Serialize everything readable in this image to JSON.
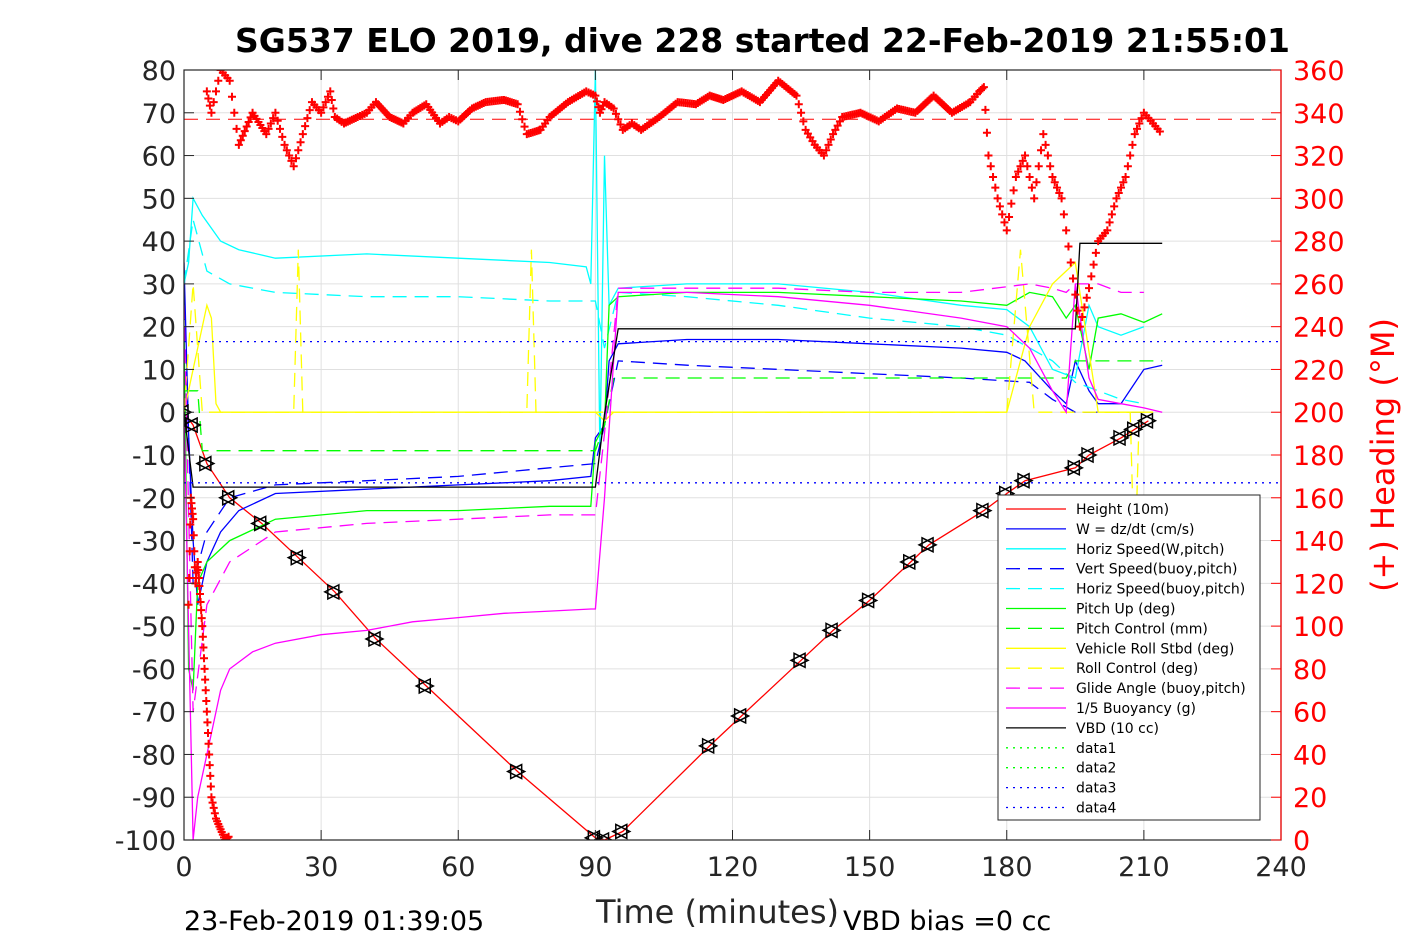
{
  "chart_data": {
    "type": "line",
    "title": "SG537 ELO 2019, dive 228 started 22-Feb-2019 21:55:01",
    "xlabel": "Time (minutes)",
    "ylabel": "",
    "ylabel_right": "(+) Heading (°M)",
    "xlim": [
      0,
      240
    ],
    "ylim": [
      -100,
      80
    ],
    "ylim_right": [
      0,
      360
    ],
    "xticks": [
      "0",
      "30",
      "60",
      "90",
      "120",
      "150",
      "180",
      "210",
      "240"
    ],
    "yticks_left": [
      "80",
      "70",
      "60",
      "50",
      "40",
      "30",
      "20",
      "10",
      "0",
      "-10",
      "-20",
      "-30",
      "-40",
      "-50",
      "-60",
      "-70",
      "-80",
      "-90",
      "-100"
    ],
    "yticks_right": [
      "360",
      "340",
      "320",
      "300",
      "280",
      "260",
      "240",
      "220",
      "200",
      "180",
      "160",
      "140",
      "120",
      "100",
      "80",
      "60",
      "40",
      "20",
      "0"
    ],
    "grid": true,
    "legend_position": "lower-right",
    "footer_left": "23-Feb-2019 01:39:05",
    "footer_right": "VBD bias =0 cc",
    "series": [
      {
        "name": "Height (10m)",
        "color": "#ff0000",
        "dash": "solid",
        "marker": "triangle",
        "x": [
          0,
          2,
          5,
          10,
          17,
          25,
          33,
          42,
          53,
          73,
          90,
          92,
          96,
          115,
          122,
          135,
          142,
          150,
          159,
          163,
          175,
          180,
          184,
          195,
          198,
          205,
          208,
          211
        ],
        "y": [
          0,
          -3,
          -12,
          -20,
          -26,
          -34,
          -42,
          -53,
          -64,
          -84,
          -99.5,
          -100,
          -98,
          -78,
          -71,
          -58,
          -51,
          -44,
          -35,
          -31,
          -23,
          -19,
          -16,
          -13,
          -10,
          -6,
          -4,
          -2
        ]
      },
      {
        "name": "W = dz/dt (cm/s)",
        "color": "#0000ff",
        "dash": "solid",
        "x": [
          0,
          1,
          2,
          3,
          5,
          8,
          12,
          20,
          40,
          60,
          80,
          89,
          90,
          92,
          93,
          95,
          110,
          130,
          150,
          170,
          180,
          184,
          190,
          193,
          195,
          198,
          200,
          205,
          210,
          214
        ],
        "y": [
          35,
          -5,
          -30,
          -45,
          -35,
          -28,
          -23,
          -19,
          -18,
          -17,
          -16,
          -15,
          -6,
          -3,
          12,
          16,
          17,
          17,
          16,
          15,
          14,
          12,
          5,
          2,
          12,
          5,
          2,
          2,
          10,
          11
        ]
      },
      {
        "name": "Horiz Speed(W,pitch)",
        "color": "#00ffff",
        "dash": "solid",
        "x": [
          0,
          1,
          2,
          4,
          8,
          12,
          20,
          40,
          60,
          80,
          88,
          89,
          90,
          91,
          92,
          93,
          95,
          110,
          130,
          150,
          170,
          180,
          185,
          190,
          195,
          198,
          200,
          205,
          210
        ],
        "y": [
          30,
          35,
          50,
          46,
          40,
          38,
          36,
          37,
          36,
          35,
          34,
          30,
          80,
          -10,
          60,
          25,
          29,
          30,
          30,
          28,
          25,
          24,
          20,
          10,
          8,
          25,
          20,
          18,
          20
        ]
      },
      {
        "name": "Vert Speed(buoy,pitch)",
        "color": "#0000ff",
        "dash": "dash",
        "x": [
          0,
          2,
          5,
          10,
          20,
          40,
          60,
          80,
          90,
          92,
          95,
          110,
          130,
          150,
          170,
          185,
          190,
          195,
          200,
          205,
          210
        ],
        "y": [
          30,
          -40,
          -28,
          -20,
          -17,
          -16,
          -15,
          -13,
          -12,
          -3,
          12,
          11,
          10,
          9,
          8,
          7,
          3,
          0,
          0,
          0,
          0
        ]
      },
      {
        "name": "Horiz Speed(buoy,pitch)",
        "color": "#00ffff",
        "dash": "dash",
        "x": [
          0,
          2,
          5,
          10,
          20,
          40,
          60,
          80,
          90,
          92,
          95,
          110,
          130,
          150,
          170,
          180,
          190,
          195,
          200,
          205,
          210
        ],
        "y": [
          30,
          45,
          33,
          30,
          28,
          27,
          27,
          26,
          26,
          15,
          28,
          27,
          25,
          22,
          20,
          18,
          12,
          7,
          5,
          3,
          2
        ]
      },
      {
        "name": "Pitch Up (deg)",
        "color": "#00ff00",
        "dash": "solid",
        "x": [
          0,
          1,
          2,
          3,
          5,
          10,
          20,
          40,
          60,
          80,
          89,
          90,
          92,
          93,
          95,
          110,
          130,
          150,
          170,
          180,
          185,
          190,
          193,
          195,
          198,
          200,
          205,
          210,
          214
        ],
        "y": [
          20,
          -60,
          -65,
          -40,
          -35,
          -30,
          -25,
          -23,
          -23,
          -22,
          -22,
          -7,
          -3,
          25,
          27,
          28,
          28,
          27,
          26,
          25,
          28,
          27,
          22,
          25,
          10,
          22,
          23,
          21,
          23
        ]
      },
      {
        "name": "Pitch Control (mm)",
        "color": "#00ff00",
        "dash": "dash",
        "x": [
          0,
          3,
          4,
          10,
          40,
          60,
          80,
          90,
          92,
          94,
          130,
          160,
          193,
          195,
          214
        ],
        "y": [
          5,
          5,
          -9,
          -9,
          -9,
          -9,
          -9,
          -9,
          -3,
          8,
          8,
          8,
          8,
          12,
          12
        ]
      },
      {
        "name": "Vehicle Roll Stbd (deg)",
        "color": "#ffff00",
        "dash": "solid",
        "x": [
          0,
          2,
          4,
          5,
          6,
          7,
          8,
          9,
          10,
          20,
          40,
          60,
          80,
          90,
          92,
          94,
          110,
          130,
          150,
          170,
          180,
          185,
          190,
          195,
          200,
          205,
          210
        ],
        "y": [
          0,
          10,
          20,
          25,
          22,
          2,
          0,
          0,
          0,
          0,
          0,
          0,
          0,
          0,
          -2,
          0,
          0,
          0,
          0,
          0,
          0,
          20,
          30,
          35,
          0,
          0,
          0
        ]
      },
      {
        "name": "Roll Control (deg)",
        "color": "#ffff00",
        "dash": "dash",
        "x": [
          0,
          2,
          4,
          8,
          10,
          24,
          25,
          26,
          50,
          75,
          76,
          77,
          90,
          95,
          100,
          130,
          160,
          180,
          183,
          186,
          200,
          207,
          208,
          209,
          212
        ],
        "y": [
          0,
          30,
          0,
          0,
          0,
          0,
          38,
          0,
          0,
          0,
          38,
          0,
          0,
          0,
          0,
          0,
          0,
          0,
          38,
          0,
          0,
          0,
          -38,
          0,
          0
        ]
      },
      {
        "name": "Glide Angle (buoy,pitch)",
        "color": "#ff00ff",
        "dash": "dash",
        "x": [
          0,
          2,
          5,
          10,
          20,
          40,
          60,
          80,
          90,
          92,
          95,
          110,
          130,
          150,
          170,
          185,
          190,
          193,
          195,
          198,
          200,
          205,
          210
        ],
        "y": [
          25,
          -70,
          -45,
          -35,
          -28,
          -26,
          -25,
          -24,
          -24,
          -5,
          29,
          29,
          29,
          28,
          28,
          30,
          29,
          28,
          30,
          30,
          30,
          28,
          28
        ]
      },
      {
        "name": "1/5 Buoyancy (g)",
        "color": "#ff00ff",
        "dash": "solid",
        "x": [
          0,
          2,
          3,
          5,
          8,
          10,
          15,
          20,
          30,
          40,
          50,
          60,
          70,
          80,
          89,
          90,
          92,
          95,
          110,
          130,
          150,
          170,
          180,
          185,
          190,
          193,
          195,
          198,
          200,
          205,
          210,
          214
        ],
        "y": [
          0,
          -100,
          -90,
          -80,
          -65,
          -60,
          -56,
          -54,
          -52,
          -51,
          -49,
          -48,
          -47,
          -46.5,
          -46,
          -46,
          -20,
          28,
          28,
          27,
          25,
          22,
          20,
          15,
          5,
          0,
          30,
          8,
          3,
          2,
          1,
          0
        ]
      },
      {
        "name": "VBD (10 cc)",
        "color": "#000000",
        "dash": "solid",
        "x": [
          0,
          2,
          3,
          90,
          92,
          95,
          130,
          195,
          196,
          214
        ],
        "y": [
          0,
          -17.5,
          -17.5,
          -17.5,
          -0.5,
          19.5,
          19.5,
          19.5,
          39.5,
          39.5
        ]
      },
      {
        "name": "data1",
        "color": "#00ff00",
        "dash": "dot",
        "x": [],
        "y": []
      },
      {
        "name": "data2",
        "color": "#00ff00",
        "dash": "dot",
        "x": [],
        "y": []
      },
      {
        "name": "data3",
        "color": "#0000ff",
        "dash": "dot",
        "x": [
          0,
          240
        ],
        "y": [
          16.5,
          16.5
        ]
      },
      {
        "name": "data4",
        "color": "#0000ff",
        "dash": "dot",
        "x": [
          0,
          240
        ],
        "y": [
          -16.5,
          -16.5
        ]
      }
    ],
    "heading": {
      "color": "#ff0000",
      "marker": "plus",
      "reference_line": 337,
      "x": [
        5,
        6,
        8,
        10,
        12,
        15,
        18,
        20,
        22,
        24,
        26,
        28,
        30,
        32,
        33,
        35,
        38,
        40,
        42,
        45,
        48,
        50,
        53,
        56,
        58,
        60,
        63,
        66,
        70,
        73,
        75,
        78,
        80,
        84,
        88,
        90,
        91,
        92,
        94,
        96,
        98,
        100,
        104,
        108,
        112,
        115,
        118,
        122,
        126,
        130,
        134,
        136,
        138,
        140,
        142,
        144,
        148,
        152,
        156,
        160,
        164,
        168,
        172,
        174,
        175,
        176,
        178,
        180,
        182,
        184,
        186,
        188,
        190,
        192,
        194,
        196,
        198,
        200,
        202,
        204,
        206,
        208,
        210,
        212,
        214
      ],
      "y": [
        350,
        340,
        360,
        355,
        325,
        340,
        330,
        340,
        325,
        315,
        330,
        345,
        340,
        350,
        338,
        335,
        338,
        340,
        345,
        338,
        335,
        340,
        344,
        335,
        338,
        336,
        342,
        345,
        346,
        344,
        330,
        332,
        338,
        345,
        350,
        348,
        340,
        345,
        342,
        332,
        335,
        332,
        338,
        345,
        344,
        348,
        346,
        350,
        345,
        355,
        348,
        332,
        325,
        320,
        330,
        338,
        340,
        336,
        342,
        340,
        348,
        340,
        345,
        350,
        352,
        320,
        300,
        285,
        310,
        320,
        300,
        330,
        310,
        300,
        270,
        240,
        258,
        280,
        285,
        300,
        310,
        330,
        340,
        335,
        330
      ]
    },
    "heading_descent": {
      "x": [
        1,
        1.5,
        2,
        2.5,
        3,
        3.5,
        4,
        4.5,
        5,
        5.5,
        6,
        7,
        8,
        9,
        10
      ],
      "y": [
        110,
        160,
        150,
        120,
        130,
        115,
        100,
        80,
        60,
        40,
        20,
        10,
        5,
        0,
        2
      ]
    }
  }
}
